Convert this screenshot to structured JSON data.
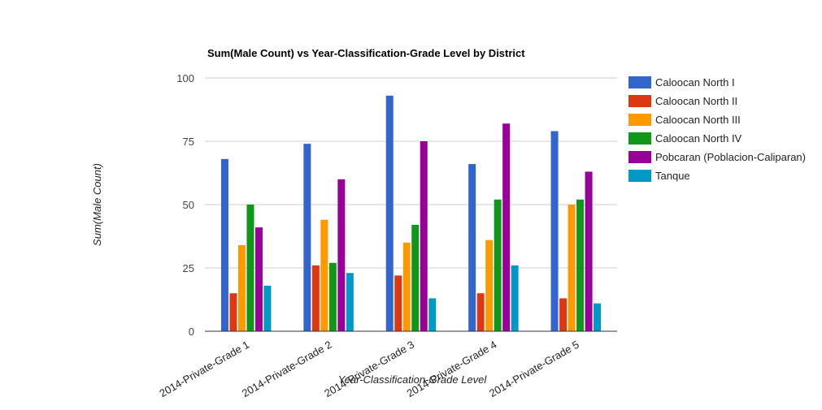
{
  "chart_data": {
    "type": "bar",
    "title": "Sum(Male Count) vs Year-Classification-Grade Level by District",
    "xlabel": "Year-Classification-Grade Level",
    "ylabel": "Sum(Male Count)",
    "ylim": [
      0,
      100
    ],
    "yticks": [
      0,
      25,
      50,
      75,
      100
    ],
    "grid": true,
    "legend_position": "right",
    "categories": [
      "2014-Private-Grade 1",
      "2014-Private-Grade 2",
      "2014-Private-Grade 3",
      "2014-Private-Grade 4",
      "2014-Private-Grade 5"
    ],
    "series": [
      {
        "name": "Caloocan North I",
        "color": "#3366cc",
        "values": [
          68,
          74,
          93,
          66,
          79
        ]
      },
      {
        "name": "Caloocan North II",
        "color": "#dc3912",
        "values": [
          15,
          26,
          22,
          15,
          13
        ]
      },
      {
        "name": "Caloocan North III",
        "color": "#ff9900",
        "values": [
          34,
          44,
          35,
          36,
          50
        ]
      },
      {
        "name": "Caloocan North IV",
        "color": "#109618",
        "values": [
          50,
          27,
          42,
          52,
          52
        ]
      },
      {
        "name": "Pobcaran (Poblacion-Caliparan)",
        "color": "#990099",
        "values": [
          41,
          60,
          75,
          82,
          63
        ]
      },
      {
        "name": "Tanque",
        "color": "#0099c6",
        "values": [
          18,
          23,
          13,
          26,
          11
        ]
      }
    ]
  }
}
